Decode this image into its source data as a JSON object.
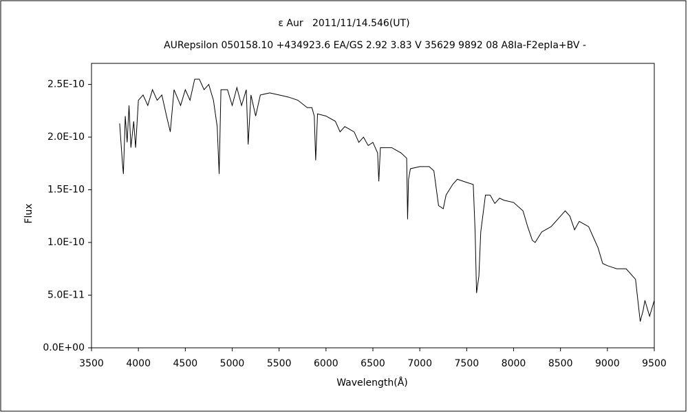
{
  "chart_data": {
    "type": "line",
    "title": "ε Aur   2011/11/14.546(UT)",
    "subtitle": "AURepsilon 050158.10 +434923.6 EA/GS 2.92 3.83 V 35629 9892 08 A8Ia-F2epIa+BV -",
    "x_label": "Wavelength(Å)",
    "y_label": "Flux",
    "xlim": [
      3500,
      9500
    ],
    "xticks": [
      3500,
      4000,
      4500,
      5000,
      5500,
      6000,
      6500,
      7000,
      7500,
      8000,
      8500,
      9000,
      9500
    ],
    "ylim": [
      0,
      2.7e-10
    ],
    "yticks": [
      {
        "value": 0,
        "label": "0.0E+00"
      },
      {
        "value": 5e-11,
        "label": "5.0E-11"
      },
      {
        "value": 1e-10,
        "label": "1.0E-10"
      },
      {
        "value": 1.5e-10,
        "label": "1.5E-10"
      },
      {
        "value": 2e-10,
        "label": "2.0E-10"
      },
      {
        "value": 2.5e-10,
        "label": "2.5E-10"
      }
    ],
    "grid": false,
    "series": [
      {
        "name": "Flux",
        "color": "#000000",
        "x": [
          3800,
          3830,
          3840,
          3860,
          3880,
          3900,
          3920,
          3950,
          3970,
          4000,
          4050,
          4100,
          4150,
          4200,
          4250,
          4300,
          4340,
          4380,
          4450,
          4500,
          4550,
          4600,
          4650,
          4700,
          4750,
          4800,
          4840,
          4861,
          4880,
          4950,
          5000,
          5050,
          5100,
          5150,
          5170,
          5200,
          5250,
          5300,
          5400,
          5500,
          5600,
          5700,
          5800,
          5850,
          5875,
          5890,
          5910,
          6000,
          6100,
          6150,
          6200,
          6300,
          6350,
          6400,
          6450,
          6500,
          6550,
          6563,
          6580,
          6700,
          6800,
          6860,
          6870,
          6880,
          6900,
          7000,
          7100,
          7150,
          7200,
          7250,
          7280,
          7350,
          7400,
          7500,
          7570,
          7590,
          7605,
          7630,
          7650,
          7700,
          7750,
          7800,
          7850,
          7900,
          8000,
          8100,
          8150,
          8200,
          8230,
          8300,
          8400,
          8500,
          8550,
          8600,
          8650,
          8700,
          8800,
          8850,
          8900,
          8950,
          9000,
          9100,
          9200,
          9300,
          9350,
          9380,
          9400,
          9450,
          9500
        ],
        "values": [
          2.13e-10,
          1.75e-10,
          1.65e-10,
          2.2e-10,
          1.95e-10,
          2.3e-10,
          1.9e-10,
          2.15e-10,
          1.9e-10,
          2.35e-10,
          2.4e-10,
          2.3e-10,
          2.45e-10,
          2.35e-10,
          2.4e-10,
          2.2e-10,
          2.05e-10,
          2.45e-10,
          2.3e-10,
          2.45e-10,
          2.35e-10,
          2.55e-10,
          2.55e-10,
          2.45e-10,
          2.5e-10,
          2.35e-10,
          2.1e-10,
          1.65e-10,
          2.45e-10,
          2.45e-10,
          2.3e-10,
          2.47e-10,
          2.3e-10,
          2.45e-10,
          1.93e-10,
          2.4e-10,
          2.2e-10,
          2.4e-10,
          2.42e-10,
          2.4e-10,
          2.38e-10,
          2.35e-10,
          2.28e-10,
          2.28e-10,
          2.2e-10,
          1.78e-10,
          2.22e-10,
          2.2e-10,
          2.15e-10,
          2.05e-10,
          2.1e-10,
          2.05e-10,
          1.95e-10,
          2e-10,
          1.92e-10,
          1.95e-10,
          1.85e-10,
          1.58e-10,
          1.9e-10,
          1.9e-10,
          1.85e-10,
          1.8e-10,
          1.22e-10,
          1.6e-10,
          1.7e-10,
          1.72e-10,
          1.72e-10,
          1.68e-10,
          1.35e-10,
          1.32e-10,
          1.45e-10,
          1.55e-10,
          1.6e-10,
          1.57e-10,
          1.55e-10,
          1.1e-10,
          5.2e-11,
          6.8e-11,
          1.1e-10,
          1.45e-10,
          1.45e-10,
          1.37e-10,
          1.42e-10,
          1.4e-10,
          1.38e-10,
          1.3e-10,
          1.15e-10,
          1.02e-10,
          1e-10,
          1.1e-10,
          1.15e-10,
          1.25e-10,
          1.3e-10,
          1.25e-10,
          1.12e-10,
          1.2e-10,
          1.15e-10,
          1.05e-10,
          9.5e-11,
          8e-11,
          7.8e-11,
          7.5e-11,
          7.5e-11,
          6.5e-11,
          2.5e-11,
          3.5e-11,
          4.5e-11,
          3e-11,
          4.5e-11
        ]
      }
    ]
  }
}
